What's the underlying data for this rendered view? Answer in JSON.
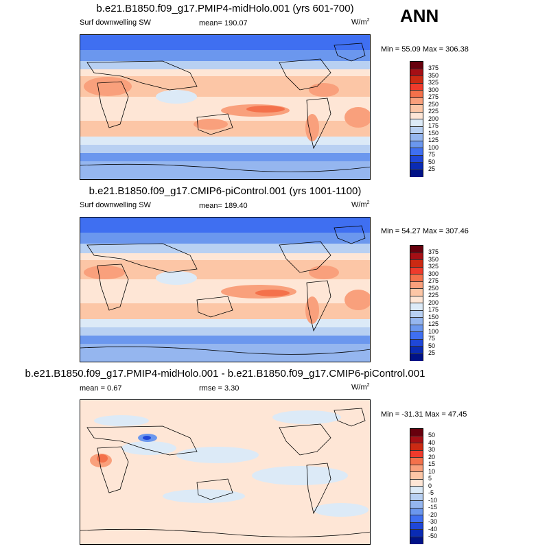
{
  "season": "ANN",
  "panels": [
    {
      "title": "b.e21.B1850.f09_g17.PMIP4-midHolo.001 (yrs 601-700)",
      "left_label": "Surf downwelling SW",
      "mid_label": "mean= 190.07",
      "units": "W/m",
      "units_sup": "2",
      "minmax": "Min = 55.09 Max = 306.38",
      "colorbar_ticks": [
        "375",
        "350",
        "325",
        "300",
        "275",
        "250",
        "225",
        "200",
        "175",
        "150",
        "125",
        "100",
        "75",
        "50",
        "25"
      ],
      "colorbar_colors": [
        "#67000d",
        "#a50f15",
        "#cb2a13",
        "#ef3b2c",
        "#f4714b",
        "#f9a07c",
        "#fcc6a6",
        "#fee6d6",
        "#dceaf7",
        "#b8d0f2",
        "#95b6ef",
        "#6b97ee",
        "#3f6ff1",
        "#1f47d8",
        "#0a2bb4",
        "#001287"
      ]
    },
    {
      "title": "b.e21.B1850.f09_g17.CMIP6-piControl.001 (yrs 1001-1100)",
      "left_label": "Surf downwelling SW",
      "mid_label": "mean= 189.40",
      "units": "W/m",
      "units_sup": "2",
      "minmax": "Min = 54.27 Max = 307.46",
      "colorbar_ticks": [
        "375",
        "350",
        "325",
        "300",
        "275",
        "250",
        "225",
        "200",
        "175",
        "150",
        "125",
        "100",
        "75",
        "50",
        "25"
      ],
      "colorbar_colors": [
        "#67000d",
        "#a50f15",
        "#cb2a13",
        "#ef3b2c",
        "#f4714b",
        "#f9a07c",
        "#fcc6a6",
        "#fee6d6",
        "#dceaf7",
        "#b8d0f2",
        "#95b6ef",
        "#6b97ee",
        "#3f6ff1",
        "#1f47d8",
        "#0a2bb4",
        "#001287"
      ]
    },
    {
      "title": "b.e21.B1850.f09_g17.PMIP4-midHolo.001 - b.e21.B1850.f09_g17.CMIP6-piControl.001",
      "left_label": "mean =   0.67",
      "mid_label": "rmse =   3.30",
      "units": "W/m",
      "units_sup": "2",
      "minmax": "Min = -31.31 Max =  47.45",
      "colorbar_ticks": [
        "50",
        "40",
        "30",
        "20",
        "15",
        "10",
        "5",
        "0",
        "-5",
        "-10",
        "-15",
        "-20",
        "-30",
        "-40",
        "-50"
      ],
      "colorbar_colors": [
        "#67000d",
        "#a50f15",
        "#cb2a13",
        "#ef3b2c",
        "#f4714b",
        "#f9a07c",
        "#fcc6a6",
        "#fee6d6",
        "#dceaf7",
        "#b8d0f2",
        "#95b6ef",
        "#6b97ee",
        "#3f6ff1",
        "#1f47d8",
        "#0a2bb4",
        "#001287"
      ]
    }
  ]
}
